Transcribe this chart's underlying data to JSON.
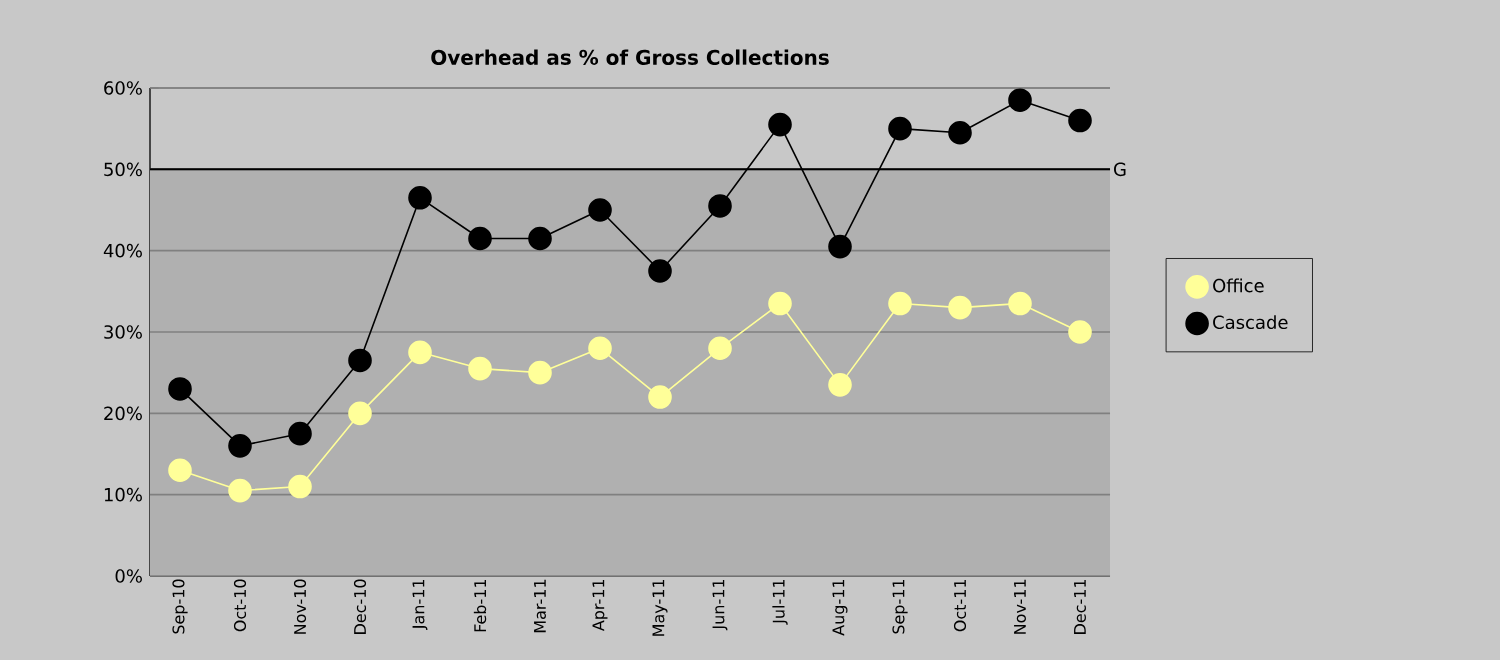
{
  "chart_data": {
    "type": "line",
    "title": "Overhead as % of Gross Collections",
    "categories": [
      "Sep-10",
      "Oct-10",
      "Nov-10",
      "Dec-10",
      "Jan-11",
      "Feb-11",
      "Mar-11",
      "Apr-11",
      "May-11",
      "Jun-11",
      "Jul-11",
      "Aug-11",
      "Sep-11",
      "Oct-11",
      "Nov-11",
      "Dec-11"
    ],
    "series": [
      {
        "name": "Office",
        "color": "#ffff99",
        "values": [
          13,
          10.5,
          11,
          20,
          27.5,
          25.5,
          25,
          28,
          22,
          28,
          33.5,
          23.5,
          33.5,
          33,
          33.5,
          30
        ]
      },
      {
        "name": "Cascade",
        "color": "#000000",
        "values": [
          23,
          16,
          17.5,
          26.5,
          46.5,
          41.5,
          41.5,
          45,
          37.5,
          45.5,
          55.5,
          40.5,
          55,
          54.5,
          58.5,
          56
        ]
      }
    ],
    "ylim": [
      0,
      60
    ],
    "yticks": [
      {
        "value": 0,
        "label": "0%"
      },
      {
        "value": 10,
        "label": "10%"
      },
      {
        "value": 20,
        "label": "20%"
      },
      {
        "value": 30,
        "label": "30%"
      },
      {
        "value": 40,
        "label": "40%"
      },
      {
        "value": 50,
        "label": "50%"
      },
      {
        "value": 60,
        "label": "60%"
      }
    ],
    "ref_lines": [
      {
        "axis": "y",
        "value": 50,
        "label": "G",
        "color": "#000000"
      }
    ],
    "bands": [
      {
        "axis": "y",
        "from": 0,
        "to": 50,
        "color": "#b0b0b0"
      }
    ],
    "grid": "y",
    "legend": "right",
    "marker": "circle",
    "line_style": "solid"
  }
}
